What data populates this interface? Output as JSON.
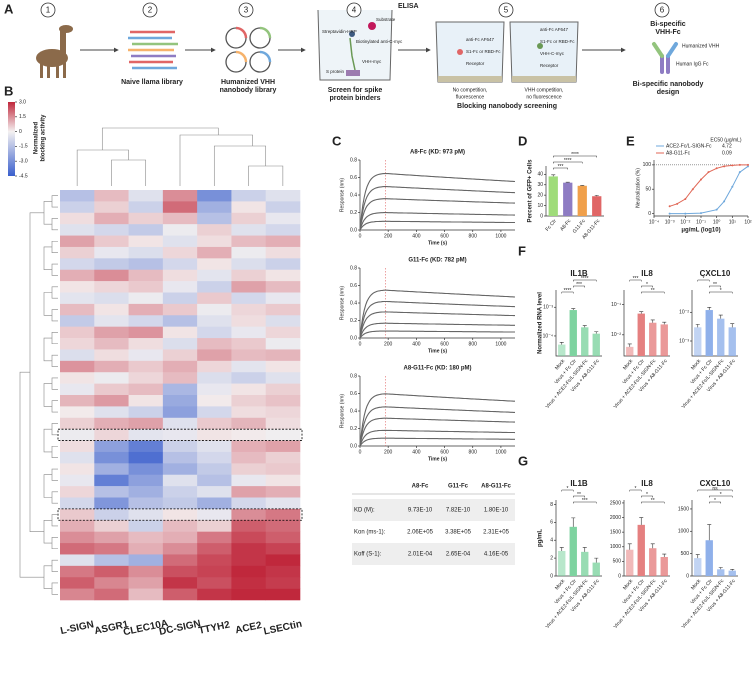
{
  "panel_labels": [
    "A",
    "B",
    "C",
    "D",
    "E",
    "F",
    "G"
  ],
  "workflow": {
    "numbers": [
      "1",
      "2",
      "3",
      "4",
      "5",
      "6"
    ],
    "step2": "Naive llama library",
    "step3": [
      "Humanized VHH",
      "nanobody library"
    ],
    "step4": {
      "title": "ELISA",
      "caption": [
        "Screen for spike",
        "protein binders"
      ],
      "labels": [
        "Substrate",
        "Streptavidin-HRP",
        "Biotinylated anti-C-myc",
        "VHH-myc",
        "S protein"
      ]
    },
    "step5": {
      "caption": "Blocking nanobody screening",
      "left": [
        "anti-Fc AF647",
        "S1-Fc or RBD-Fc",
        "Receptor"
      ],
      "right": [
        "anti-Fc AF647",
        "S1-Fc or RBD-Fc",
        "VHH-C-myc",
        "Receptor"
      ],
      "left_note": [
        "No competition,",
        "fluorescence"
      ],
      "right_note": [
        "VHH competition,",
        "no fluorescence"
      ]
    },
    "step6": {
      "title": [
        "Bi-specific",
        "VHH-Fc"
      ],
      "labels": [
        "Humanized VHH",
        "Human IgG Fc"
      ],
      "caption": [
        "Bi-specific nanobody",
        "design"
      ]
    }
  },
  "heatmap": {
    "colorbar_title": [
      "Normalized",
      "blocking activity"
    ],
    "clim": [
      -4.5,
      3
    ],
    "colorbar_ticks": [
      {
        "value": 3,
        "label": "3.0"
      },
      {
        "value": 1.5,
        "label": "1.5"
      },
      0,
      {
        "value": -1.5,
        "label": "-1.5"
      },
      {
        "value": -3,
        "label": "-3.0"
      },
      {
        "value": -4.5,
        "label": "-4.5"
      }
    ],
    "colors": {
      "low": "#3a5fcd",
      "mid": "#f4f1f1",
      "high": "#c0283c"
    },
    "columns": [
      "L-SIGN",
      "ASGR1",
      "CLEC10A",
      "DC-SIGN",
      "TTYH2",
      "ACE2",
      "LSECtin"
    ],
    "rows": [
      [
        -1.5,
        0.8,
        -0.5,
        1.5,
        -3.0,
        -1.0,
        -0.5
      ],
      [
        -1.0,
        0.5,
        -1.0,
        2.0,
        -2.0,
        0.2,
        -1.0
      ],
      [
        0.3,
        1.0,
        0.5,
        0.8,
        -1.5,
        0.5,
        -0.3
      ],
      [
        -0.5,
        -0.8,
        -1.2,
        -0.2,
        0.5,
        -0.5,
        -0.8
      ],
      [
        1.2,
        0.6,
        0.2,
        -0.5,
        0.3,
        0.8,
        1.0
      ],
      [
        0.5,
        -0.3,
        -0.6,
        0.4,
        1.0,
        -0.2,
        0.3
      ],
      [
        -0.8,
        -1.2,
        -1.5,
        -0.8,
        0.2,
        -0.6,
        -1.0
      ],
      [
        1.0,
        1.5,
        0.8,
        0.3,
        -0.4,
        0.5,
        0.2
      ],
      [
        0.2,
        0.4,
        0.6,
        -0.3,
        -1.0,
        1.2,
        0.8
      ],
      [
        -0.4,
        -0.6,
        -0.2,
        -1.0,
        0.6,
        -0.8,
        -0.3
      ],
      [
        0.8,
        0.2,
        1.0,
        0.6,
        -0.2,
        0.4,
        0.6
      ],
      [
        -1.2,
        -0.4,
        -0.8,
        -1.5,
        -0.5,
        0.3,
        -0.6
      ],
      [
        0.6,
        1.2,
        1.4,
        0.2,
        -0.8,
        -0.3,
        0.4
      ],
      [
        0.4,
        0.8,
        0.3,
        -0.6,
        0.8,
        0.6,
        -0.2
      ],
      [
        -0.6,
        0.3,
        -0.3,
        0.5,
        1.2,
        0.8,
        0.9
      ],
      [
        1.4,
        1.0,
        0.6,
        1.0,
        0.4,
        -0.4,
        0.2
      ],
      [
        0.2,
        -0.2,
        0.4,
        0.8,
        -0.6,
        -1.0,
        -0.5
      ],
      [
        -0.3,
        0.6,
        0.8,
        -1.8,
        -0.3,
        0.2,
        0.5
      ],
      [
        0.9,
        1.3,
        0.2,
        -2.2,
        0.1,
        0.5,
        0.7
      ],
      [
        0.1,
        -0.5,
        -1.0,
        -2.5,
        -0.8,
        0.3,
        0.4
      ],
      [
        0.5,
        1.0,
        1.2,
        -0.5,
        0.6,
        0.9,
        0.3
      ],
      [
        -0.2,
        0.4,
        -0.4,
        -0.3,
        0.2,
        0.1,
        -0.1
      ],
      [
        0.3,
        -2.5,
        -3.5,
        -1.0,
        -0.5,
        1.0,
        1.2
      ],
      [
        -0.5,
        -3.0,
        -4.0,
        -1.5,
        -0.8,
        0.8,
        0.5
      ],
      [
        0.2,
        -2.0,
        -3.0,
        -2.0,
        -1.2,
        0.5,
        0.6
      ],
      [
        -0.3,
        -3.5,
        -2.5,
        -0.5,
        -1.5,
        -0.3,
        0.2
      ],
      [
        0.4,
        -1.5,
        -2.0,
        -1.0,
        -0.5,
        1.2,
        1.0
      ],
      [
        -0.8,
        -2.8,
        -1.5,
        -1.2,
        -2.0,
        -0.8,
        -0.4
      ],
      [
        0.6,
        -1.0,
        -0.5,
        0.2,
        -0.3,
        1.5,
        1.8
      ],
      [
        1.0,
        0.5,
        -1.0,
        0.8,
        0.5,
        2.2,
        2.0
      ],
      [
        1.5,
        1.2,
        0.8,
        1.0,
        1.8,
        2.5,
        2.2
      ],
      [
        2.0,
        1.8,
        1.0,
        1.5,
        2.2,
        2.8,
        2.6
      ],
      [
        -0.5,
        -1.5,
        -2.0,
        2.0,
        2.5,
        2.8,
        3.0
      ],
      [
        1.8,
        2.2,
        1.5,
        2.4,
        2.6,
        3.0,
        2.8
      ],
      [
        2.2,
        1.6,
        1.2,
        2.8,
        2.4,
        2.9,
        2.7
      ],
      [
        1.6,
        2.0,
        0.8,
        2.2,
        2.8,
        3.0,
        3.0
      ]
    ]
  },
  "kinetics": {
    "y_label": "Response (nm)",
    "x_label": "Time (s)",
    "xlim": [
      0,
      1100
    ],
    "xticks": [
      0,
      200,
      400,
      600,
      800,
      1000
    ],
    "ylim": [
      0,
      0.8
    ],
    "yticks": [
      {
        "value": 0,
        "label": "0.0"
      },
      0.2,
      0.4,
      0.6,
      0.8
    ],
    "dissociation_start": 180,
    "plots": [
      {
        "title": "A8-Fc (KD: 973 pM)",
        "amplitudes": [
          0.65,
          0.5,
          0.36,
          0.2,
          0.1
        ]
      },
      {
        "title": "G11-Fc (KD: 782 pM)",
        "amplitudes": [
          0.55,
          0.42,
          0.3,
          0.17,
          0.08
        ]
      },
      {
        "title": "A8-G11-Fc (KD: 180 pM)",
        "amplitudes": [
          0.6,
          0.45,
          0.32,
          0.18,
          0.09
        ]
      }
    ]
  },
  "table": {
    "columns": [
      "A8-Fc",
      "G11-Fc",
      "A8-G11-Fc"
    ],
    "rows": [
      {
        "label": "KD (M):",
        "cells": [
          "9.73E-10",
          "7.82E-10",
          "1.80E-10"
        ]
      },
      {
        "label": "Kon (ms-1):",
        "cells": [
          "2.06E+05",
          "3.38E+05",
          "2.31E+05"
        ]
      },
      {
        "label": "Koff (S-1):",
        "cells": [
          "2.01E-04",
          "2.65E-04",
          "4.16E-05"
        ]
      }
    ]
  },
  "gfp": {
    "y_label": "Percent of GFP+ Cells",
    "ylim": [
      0,
      48
    ],
    "yticks": [
      0,
      10,
      20,
      30,
      40
    ],
    "categories": [
      "Fc Ctr",
      "A8-Fc",
      "G11-Fc",
      "A8-G11-Fc"
    ],
    "values": [
      38,
      32,
      29,
      19
    ],
    "errors": [
      1.5,
      0.5,
      0.5,
      0.8
    ],
    "colors": [
      "#9fdc7a",
      "#8e7cc3",
      "#f0a04b",
      "#e06666"
    ],
    "significance": [
      "****",
      "****",
      "***"
    ]
  },
  "neutralization": {
    "y_label": "Neutralization (%)",
    "x_label": "μg/mL (log10)",
    "ec50_title": "EC50 (μg/mL)",
    "xlim": [
      0.0001,
      100
    ],
    "xticks": [
      {
        "value": 0.0001,
        "label": "10⁻⁴"
      },
      {
        "value": 0.001,
        "label": "10⁻³"
      },
      {
        "value": 0.01,
        "label": "10⁻²"
      },
      {
        "value": 0.1,
        "label": "10⁻¹"
      },
      {
        "value": 1,
        "label": "10⁰"
      },
      {
        "value": 10,
        "label": "10¹"
      },
      {
        "value": 100,
        "label": "10²"
      }
    ],
    "ylim": [
      -5,
      110
    ],
    "yticks": [
      0,
      50,
      100
    ],
    "series": [
      {
        "name": "ACE2-Fc/L-SIGN-Fc",
        "color": "#6fa8dc",
        "ec50": 4.72,
        "x": [
          0.001,
          0.01,
          0.1,
          1,
          3,
          10,
          30,
          100
        ],
        "values": [
          0,
          0,
          1,
          8,
          25,
          55,
          85,
          97
        ]
      },
      {
        "name": "A8-G11-Fc",
        "color": "#e06655",
        "ec50": 0.09,
        "x": [
          0.001,
          0.003,
          0.01,
          0.03,
          0.1,
          0.3,
          1,
          3,
          10,
          30,
          100
        ],
        "values": [
          15,
          20,
          30,
          50,
          70,
          85,
          93,
          97,
          99,
          100,
          100
        ]
      }
    ]
  },
  "rna": {
    "y_label": "Normalized RNA level",
    "categories": [
      "Mock",
      "Virus + Fc Ctr",
      "Virus + ACE2-Fc/L-SIGN-Fc",
      "Virus + A8-G11-Fc"
    ],
    "charts": [
      {
        "title": "IL1B",
        "color": "#7ed3a0",
        "ylim": [
          0.0002,
          0.04
        ],
        "yticks": [
          {
            "value": 0.0001,
            "label": "10⁻⁴"
          },
          {
            "value": 0.001,
            "label": "10⁻³"
          },
          {
            "value": 0.01,
            "label": "10⁻²"
          }
        ],
        "values": [
          0.0005,
          0.008,
          0.002,
          0.0012
        ],
        "errors": [
          0.0001,
          0.001,
          0.0003,
          0.0002
        ],
        "significance": [
          "****",
          "***",
          "****"
        ]
      },
      {
        "title": "IL8",
        "color": "#e58080",
        "ylim": [
          0.002,
          0.3
        ],
        "yticks": [
          {
            "value": 0.01,
            "label": "10⁻²"
          },
          {
            "value": 0.1,
            "label": "10⁻¹"
          }
        ],
        "values": [
          0.004,
          0.05,
          0.025,
          0.022
        ],
        "errors": [
          0.001,
          0.008,
          0.006,
          0.004
        ],
        "significance": [
          "***",
          "*",
          "**"
        ]
      },
      {
        "title": "CXCL10",
        "color": "#8fb0ea",
        "ylim": [
          0.0003,
          0.06
        ],
        "yticks": [
          {
            "value": 0.001,
            "label": "10⁻³"
          },
          {
            "value": 0.01,
            "label": "10⁻²"
          }
        ],
        "values": [
          0.003,
          0.012,
          0.006,
          0.003
        ],
        "errors": [
          0.0008,
          0.003,
          0.002,
          0.001
        ],
        "significance": [
          "*",
          "**",
          "*"
        ]
      }
    ]
  },
  "cytokine": {
    "y_label": "pg/mL",
    "categories": [
      "Mock",
      "Virus + Fc Ctr",
      "Virus + ACE2-Fc/L-SIGN-Fc",
      "Virus + A8-G11-Fc"
    ],
    "charts": [
      {
        "title": "IL1B",
        "color": "#7ed3a0",
        "ylim": [
          0,
          8.5
        ],
        "yticks": [
          0,
          2,
          4,
          6,
          8
        ],
        "values": [
          2.8,
          5.5,
          2.7,
          1.5
        ],
        "errors": [
          0.4,
          1.0,
          0.5,
          0.5
        ],
        "significance": [
          "*",
          "**",
          "***"
        ]
      },
      {
        "title": "IL8",
        "color": "#e58080",
        "ylim": [
          0,
          2600
        ],
        "yticks": [
          0,
          500,
          1000,
          1500,
          2000,
          2500
        ],
        "values": [
          900,
          1750,
          950,
          650
        ],
        "errors": [
          200,
          250,
          150,
          100
        ],
        "significance": [
          "*",
          "*",
          "**"
        ]
      },
      {
        "title": "CXCL10",
        "color": "#8fb0ea",
        "ylim": [
          0,
          1700
        ],
        "yticks": [
          0,
          500,
          1000,
          1500
        ],
        "values": [
          400,
          800,
          150,
          120
        ],
        "errors": [
          80,
          350,
          40,
          30
        ],
        "significance": [
          "ns",
          "*",
          "*"
        ]
      }
    ]
  }
}
